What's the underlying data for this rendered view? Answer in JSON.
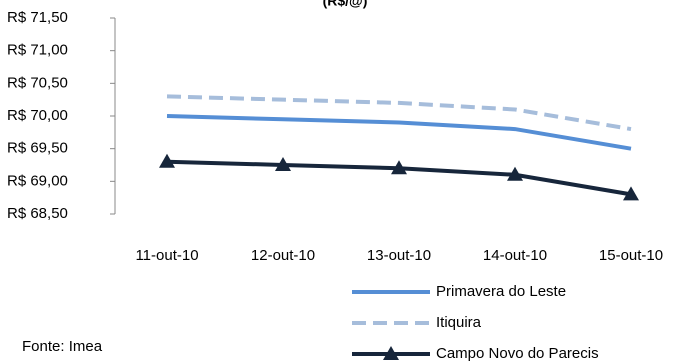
{
  "chart_data": {
    "type": "line",
    "title": "(R$/@)",
    "categories": [
      "11-out-10",
      "12-out-10",
      "13-out-10",
      "14-out-10",
      "15-out-10"
    ],
    "series": [
      {
        "name": "Primavera do Leste",
        "color": "#558ed5",
        "dash": "solid",
        "marker": "none",
        "values": [
          70.0,
          69.95,
          69.9,
          69.8,
          69.5
        ]
      },
      {
        "name": "Itiquira",
        "color": "#a6bddb",
        "dash": "dashed",
        "marker": "none",
        "values": [
          70.3,
          70.25,
          70.2,
          70.1,
          69.8
        ]
      },
      {
        "name": "Campo Novo do Parecis",
        "color": "#17263b",
        "dash": "solid",
        "marker": "triangle",
        "values": [
          69.3,
          69.25,
          69.2,
          69.1,
          68.8
        ]
      }
    ],
    "ylim": [
      68.5,
      71.5
    ],
    "yticks": [
      {
        "value": 68.5,
        "label": "R$ 68,50"
      },
      {
        "value": 69,
        "label": "R$ 69,00"
      },
      {
        "value": 69.5,
        "label": "R$ 69,50"
      },
      {
        "value": 70,
        "label": "R$ 70,00"
      },
      {
        "value": 70.5,
        "label": "R$ 70,50"
      },
      {
        "value": 71,
        "label": "R$ 71,00"
      },
      {
        "value": 71.5,
        "label": "R$ 71,50"
      }
    ],
    "grid": false,
    "source": "Fonte: Imea"
  }
}
